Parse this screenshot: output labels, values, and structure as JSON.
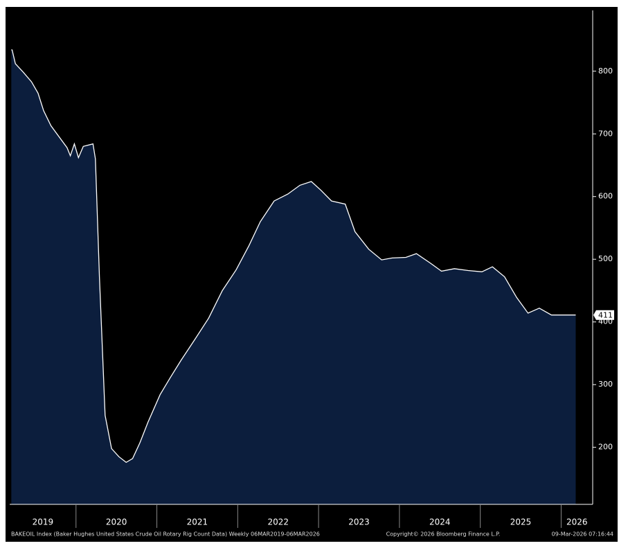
{
  "chart_data": {
    "type": "area",
    "series": [
      {
        "name": "BAKEOIL Index",
        "color": "#0c1e3d",
        "line_color": "#ffffff",
        "x": [
          2019.2,
          2019.21,
          2019.25,
          2019.35,
          2019.45,
          2019.53,
          2019.6,
          2019.69,
          2019.89,
          2019.93,
          2019.98,
          2020.03,
          2020.09,
          2020.21,
          2020.24,
          2020.29,
          2020.36,
          2020.44,
          2020.53,
          2020.62,
          2020.7,
          2020.79,
          2020.89,
          2021.04,
          2021.17,
          2021.3,
          2021.47,
          2021.64,
          2021.81,
          2021.98,
          2022.14,
          2022.28,
          2022.45,
          2022.62,
          2022.77,
          2022.91,
          2023.03,
          2023.16,
          2023.33,
          2023.45,
          2023.62,
          2023.78,
          2023.91,
          2024.08,
          2024.21,
          2024.38,
          2024.52,
          2024.68,
          2024.85,
          2025.02,
          2025.15,
          2025.3,
          2025.45,
          2025.59,
          2025.73,
          2025.88,
          2026.02,
          2026.18
        ],
        "values": [
          834,
          834,
          812,
          798,
          783,
          765,
          737,
          713,
          678,
          665,
          684,
          662,
          680,
          684,
          660,
          472,
          251,
          198,
          185,
          176,
          182,
          207,
          240,
          284,
          312,
          339,
          372,
          406,
          450,
          483,
          522,
          560,
          593,
          604,
          618,
          624,
          610,
          593,
          588,
          544,
          516,
          499,
          502,
          503,
          509,
          494,
          481,
          485,
          482,
          480,
          488,
          472,
          439,
          414,
          422,
          411,
          411,
          411
        ]
      }
    ],
    "xlim": [
      2019.18,
      2026.39
    ],
    "xticks": [
      2020,
      2021,
      2022,
      2023,
      2024,
      2025,
      2026
    ],
    "year_labels": [
      "2019",
      "2020",
      "2021",
      "2022",
      "2023",
      "2024",
      "2025",
      "2026"
    ],
    "ylim": [
      109,
      897
    ],
    "yticks": [
      200,
      300,
      400,
      500,
      600,
      700,
      800
    ],
    "footer": {
      "source": "BAKEOIL Index (Baker Hughes United States Crude Oil Rotary Rig Count Data) Weekly 06MAR2019-06MAR2026",
      "copyright": "Copyright© 2026 Bloomberg Finance L.P.",
      "timestamp": "09-Mar-2026 07:16:44"
    }
  }
}
